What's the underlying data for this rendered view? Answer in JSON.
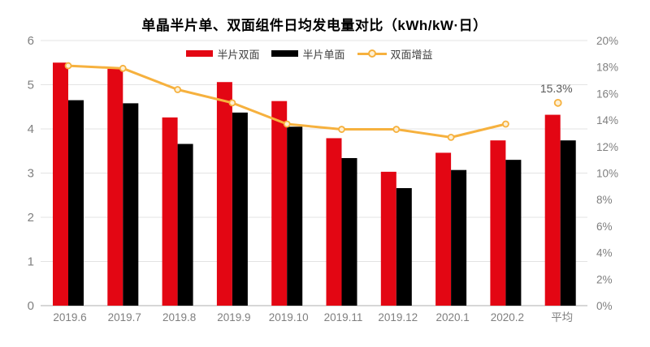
{
  "title": "单晶半片单、双面组件日均发电量对比（kWh/kW·日）",
  "legend": {
    "items": [
      {
        "label": "半片双面",
        "marker": "bar-swatch",
        "color": "#E30613"
      },
      {
        "label": "半片单面",
        "marker": "bar-swatch",
        "color": "#000000"
      },
      {
        "label": "双面增益",
        "marker": "line-circle-swatch",
        "color": "#F6B13E"
      }
    ]
  },
  "chart_data": {
    "type": "bar",
    "subtype": "grouped bars + line on secondary axis",
    "title": "单晶半片单、双面组件日均发电量对比（kWh/kW·日）",
    "categories": [
      "2019.6",
      "2019.7",
      "2019.8",
      "2019.9",
      "2019.10",
      "2019.11",
      "2019.12",
      "2020.1",
      "2020.2",
      "平均"
    ],
    "series": [
      {
        "name": "半片双面",
        "type": "bar",
        "axis": "left",
        "color": "#E30613",
        "values": [
          5.5,
          5.36,
          4.26,
          5.06,
          4.63,
          3.79,
          3.03,
          3.46,
          3.74,
          4.32
        ]
      },
      {
        "name": "半片单面",
        "type": "bar",
        "axis": "left",
        "color": "#000000",
        "values": [
          4.65,
          4.58,
          3.66,
          4.37,
          4.05,
          3.34,
          2.66,
          3.07,
          3.3,
          3.74
        ]
      },
      {
        "name": "双面增益",
        "type": "line",
        "axis": "right",
        "color": "#F6B13E",
        "values": [
          18.1,
          17.9,
          16.3,
          15.3,
          13.7,
          13.3,
          13.3,
          12.7,
          13.7,
          null
        ],
        "average_point": {
          "category": "平均",
          "value": 15.3,
          "label": "15.3%",
          "connected": false
        }
      }
    ],
    "left_axis": {
      "min": 0,
      "max": 6,
      "step": 1,
      "ticks": [
        "0",
        "1",
        "2",
        "3",
        "4",
        "5",
        "6"
      ]
    },
    "right_axis": {
      "min": 0,
      "max": 20,
      "step": 2,
      "ticks": [
        "0%",
        "2%",
        "4%",
        "6%",
        "8%",
        "10%",
        "12%",
        "14%",
        "16%",
        "18%",
        "20%"
      ]
    },
    "grid": "horizontal gridlines on",
    "legend_position": "top center"
  },
  "colors": {
    "bar_bifacial": "#E30613",
    "bar_monofacial": "#000000",
    "gain_line": "#F6B13E",
    "marker_fill": "#FDF0D5",
    "gridline": "#E3E3E3",
    "axis_line": "#BFBFBF",
    "tick_label": "#7F7F7F",
    "annotation_text": "#595959",
    "background": "#FFFFFF"
  }
}
